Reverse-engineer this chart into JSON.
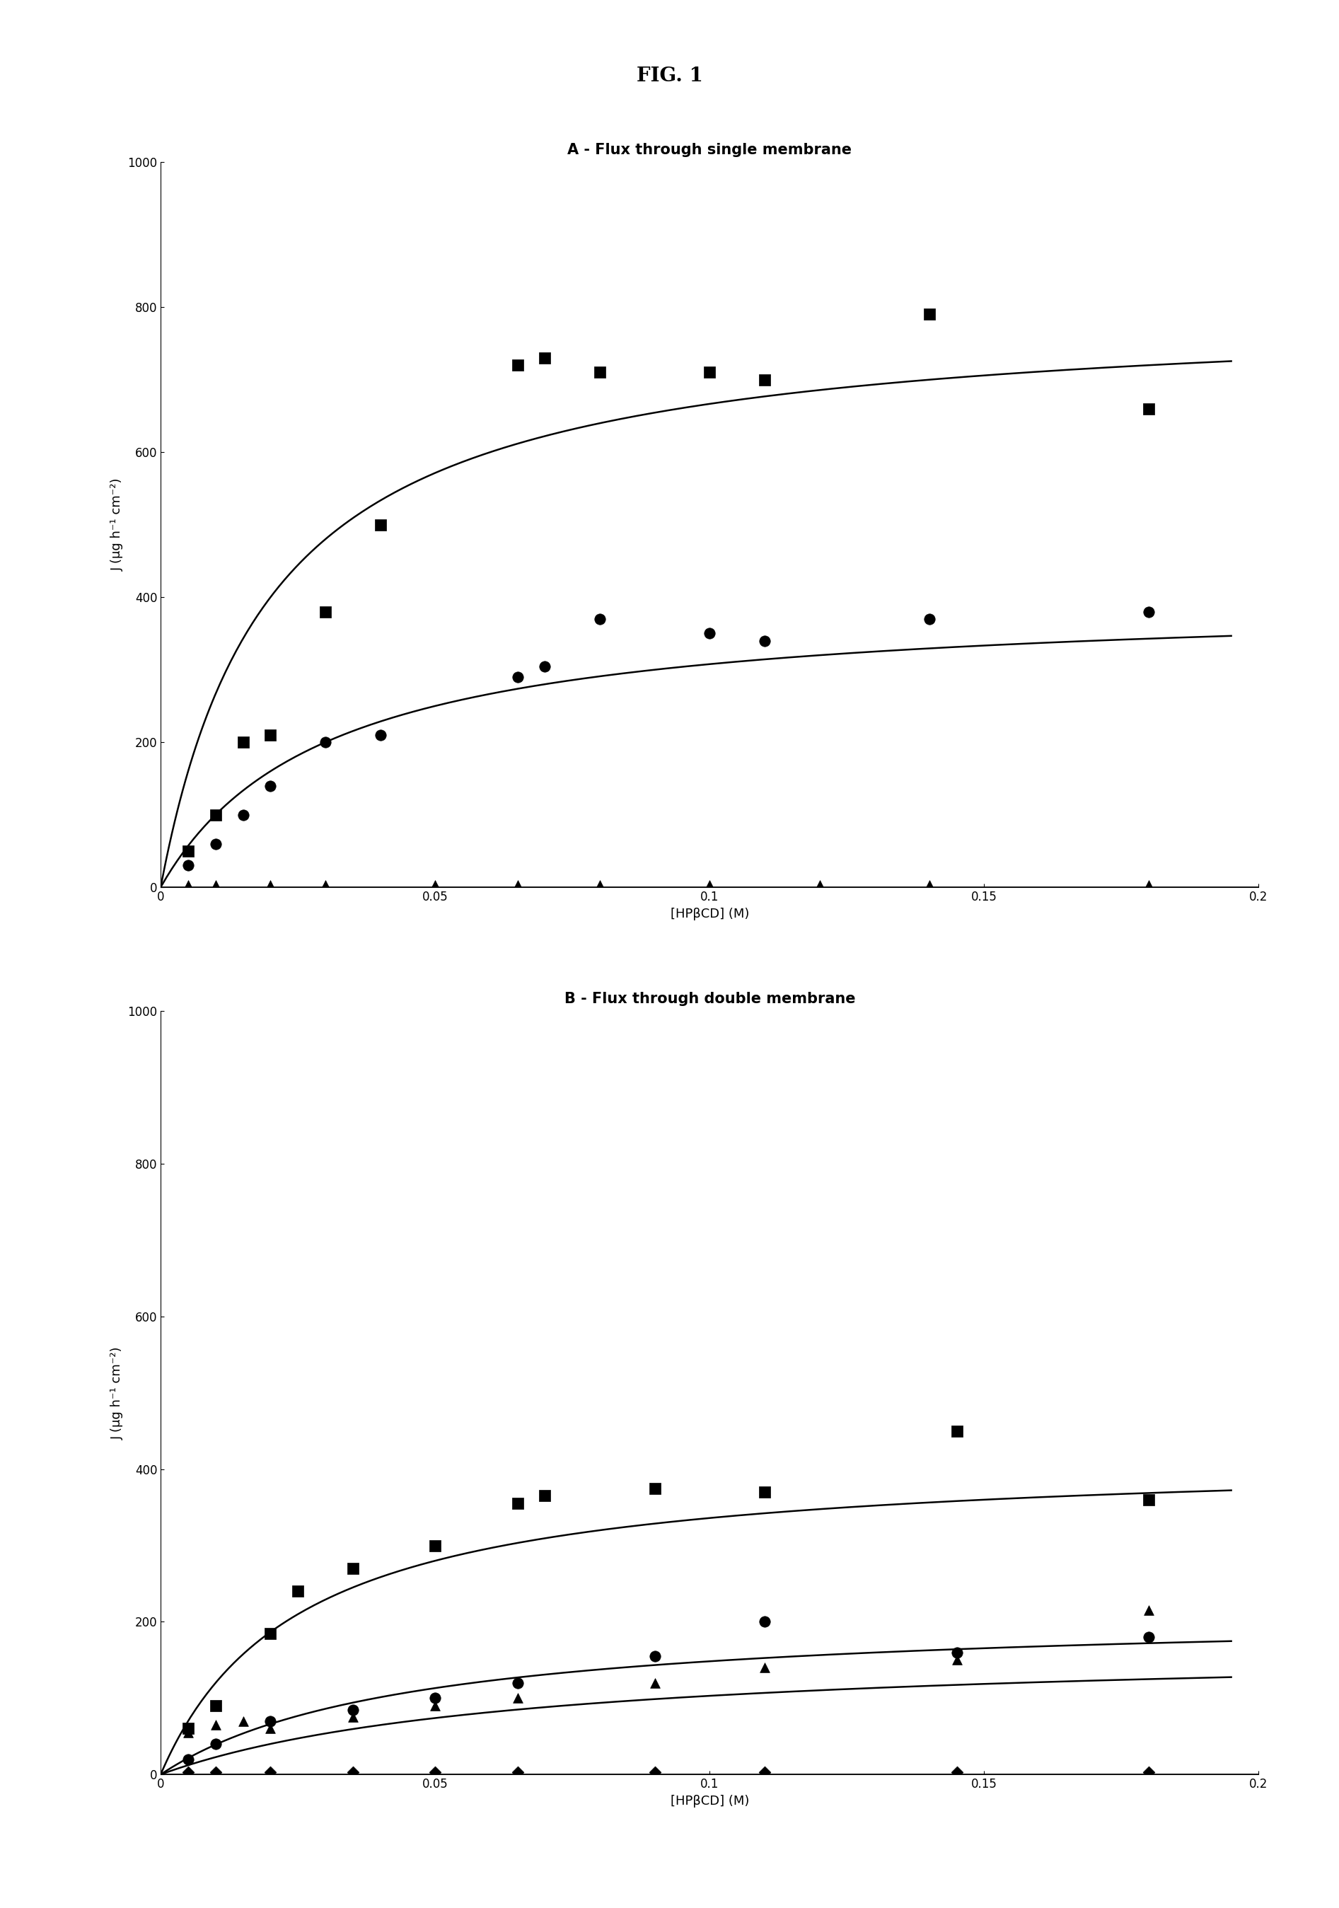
{
  "fig_title": "FIG. 1",
  "panel_A_title": "A - Flux through single membrane",
  "panel_B_title": "B - Flux through double membrane",
  "xlabel": "[HPβCD] (M)",
  "ylabel": "J (μg h⁻¹ cm⁻²)",
  "xlim": [
    0,
    0.2
  ],
  "ylim": [
    0,
    1000
  ],
  "A_squares_x": [
    0.005,
    0.01,
    0.015,
    0.02,
    0.03,
    0.04,
    0.065,
    0.07,
    0.08,
    0.1,
    0.11,
    0.14,
    0.18
  ],
  "A_squares_y": [
    50,
    100,
    200,
    210,
    380,
    500,
    720,
    730,
    710,
    710,
    700,
    790,
    660
  ],
  "A_squares_Jmax": 800,
  "A_squares_K": 0.02,
  "A_circles_x": [
    0.005,
    0.01,
    0.015,
    0.02,
    0.03,
    0.04,
    0.065,
    0.07,
    0.08,
    0.1,
    0.11,
    0.14,
    0.18
  ],
  "A_circles_y": [
    30,
    60,
    100,
    140,
    200,
    210,
    290,
    305,
    370,
    350,
    340,
    370,
    380
  ],
  "A_circles_Jmax": 400,
  "A_circles_K": 0.03,
  "A_triangles_x": [
    0.005,
    0.01,
    0.02,
    0.03,
    0.05,
    0.065,
    0.08,
    0.1,
    0.12,
    0.14,
    0.18
  ],
  "A_triangles_y": [
    3,
    3,
    3,
    3,
    3,
    3,
    3,
    3,
    3,
    3,
    3
  ],
  "A_diamonds_x": [
    0.005,
    0.01,
    0.02,
    0.03,
    0.05,
    0.065,
    0.08,
    0.1,
    0.12,
    0.14,
    0.18
  ],
  "A_diamonds_y": [
    -5,
    -5,
    -5,
    -3,
    -3,
    -5,
    -5,
    -5,
    -5,
    -5,
    -5
  ],
  "B_squares_x": [
    0.005,
    0.01,
    0.02,
    0.025,
    0.035,
    0.05,
    0.065,
    0.07,
    0.09,
    0.11,
    0.145,
    0.18
  ],
  "B_squares_y": [
    60,
    90,
    185,
    240,
    270,
    300,
    355,
    365,
    375,
    370,
    450,
    360
  ],
  "B_squares_Jmax": 420,
  "B_squares_K": 0.025,
  "B_circles_x": [
    0.005,
    0.01,
    0.02,
    0.035,
    0.05,
    0.065,
    0.09,
    0.11,
    0.145,
    0.18
  ],
  "B_circles_y": [
    20,
    40,
    70,
    85,
    100,
    120,
    155,
    200,
    160,
    180
  ],
  "B_circles_Jmax": 215,
  "B_circles_K": 0.045,
  "B_triangles_x": [
    0.005,
    0.01,
    0.015,
    0.02,
    0.035,
    0.05,
    0.065,
    0.09,
    0.11,
    0.145,
    0.18
  ],
  "B_triangles_y": [
    55,
    65,
    70,
    60,
    75,
    90,
    100,
    120,
    140,
    150,
    215
  ],
  "B_triangles_Jmax": 170,
  "B_triangles_K": 0.065,
  "B_diamonds_x": [
    0.005,
    0.01,
    0.02,
    0.035,
    0.05,
    0.065,
    0.09,
    0.11,
    0.145,
    0.18
  ],
  "B_diamonds_y": [
    3,
    3,
    3,
    3,
    3,
    3,
    3,
    3,
    3,
    3
  ],
  "marker_color": "black",
  "line_color": "black",
  "bg_color": "white",
  "title_fontsize": 16,
  "panel_title_fontsize": 15,
  "label_fontsize": 13,
  "tick_fontsize": 12,
  "marker_size": 7
}
